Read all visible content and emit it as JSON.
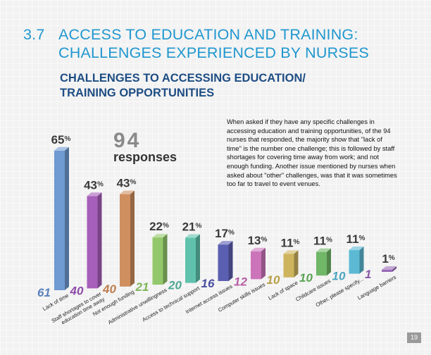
{
  "header": {
    "section_number": "3.7",
    "title_line1": "ACCESS TO EDUCATION AND TRAINING:",
    "title_line2": "CHALLENGES EXPERIENCED BY NURSES",
    "subtitle_line1": "CHALLENGES TO ACCESSING EDUCATION/",
    "subtitle_line2": "TRAINING OPPORTUNITIES"
  },
  "responses": {
    "count": "94",
    "label": "responses"
  },
  "description": "When asked if they have any specific challenges in accessing education and training opportunities, of the 94 nurses that responded, the majority show that \"lack of time\" is the number one challenge; this is followed by staff shortages for covering time away from work; and not enough funding.  Another issue mentioned by nurses when asked about \"other\" challenges, was that it was sometimes too far to travel to event venues.",
  "page_number": "19",
  "chart_data": {
    "type": "bar",
    "title": "",
    "xlabel": "",
    "ylabel": "",
    "ylim": [
      0,
      70
    ],
    "categories": [
      "Lack of time",
      "Staff shortages to cover education time away",
      "Not enough funding",
      "Administrative unwillingness",
      "Access to technical support",
      "Internet access issues",
      "Computer skills issues",
      "Lack of space",
      "Childcare issues",
      "Other, please specify...",
      "Language barriers"
    ],
    "category_lines": [
      [
        "Lack of time"
      ],
      [
        "Staff shortages to cover",
        "education time away"
      ],
      [
        "Not enough funding"
      ],
      [
        "Administrative unwillingness"
      ],
      [
        "Access to technical support"
      ],
      [
        "Internet access issues"
      ],
      [
        "Computer skills issues"
      ],
      [
        "Lack of space"
      ],
      [
        "Childcare issues"
      ],
      [
        "Other, please specify..."
      ],
      [
        "Language barriers"
      ]
    ],
    "values": [
      65,
      43,
      43,
      22,
      21,
      17,
      13,
      11,
      11,
      11,
      1
    ],
    "value_labels": [
      "65",
      "43",
      "43",
      "22",
      "21",
      "17",
      "13",
      "11",
      "11",
      "11",
      "1"
    ],
    "percent_sign": "%",
    "counts": [
      "61",
      "40",
      "40",
      "21",
      "20",
      "16",
      "12",
      "10",
      "10",
      "10",
      "1"
    ],
    "colors": [
      "#6f9ad2",
      "#a65fba",
      "#cf8f5e",
      "#92c86b",
      "#5fc2ad",
      "#5b5fb2",
      "#cc74ba",
      "#ceb45e",
      "#70b768",
      "#5cb9d4",
      "#9a6ab8"
    ],
    "count_colors": [
      "#5b81bd",
      "#8e4aa8",
      "#bd7d4d",
      "#7db556",
      "#4ca794",
      "#4a4ea0",
      "#b65ca3",
      "#b99f49",
      "#5aa353",
      "#4aa5c1",
      "#8759a6"
    ]
  }
}
